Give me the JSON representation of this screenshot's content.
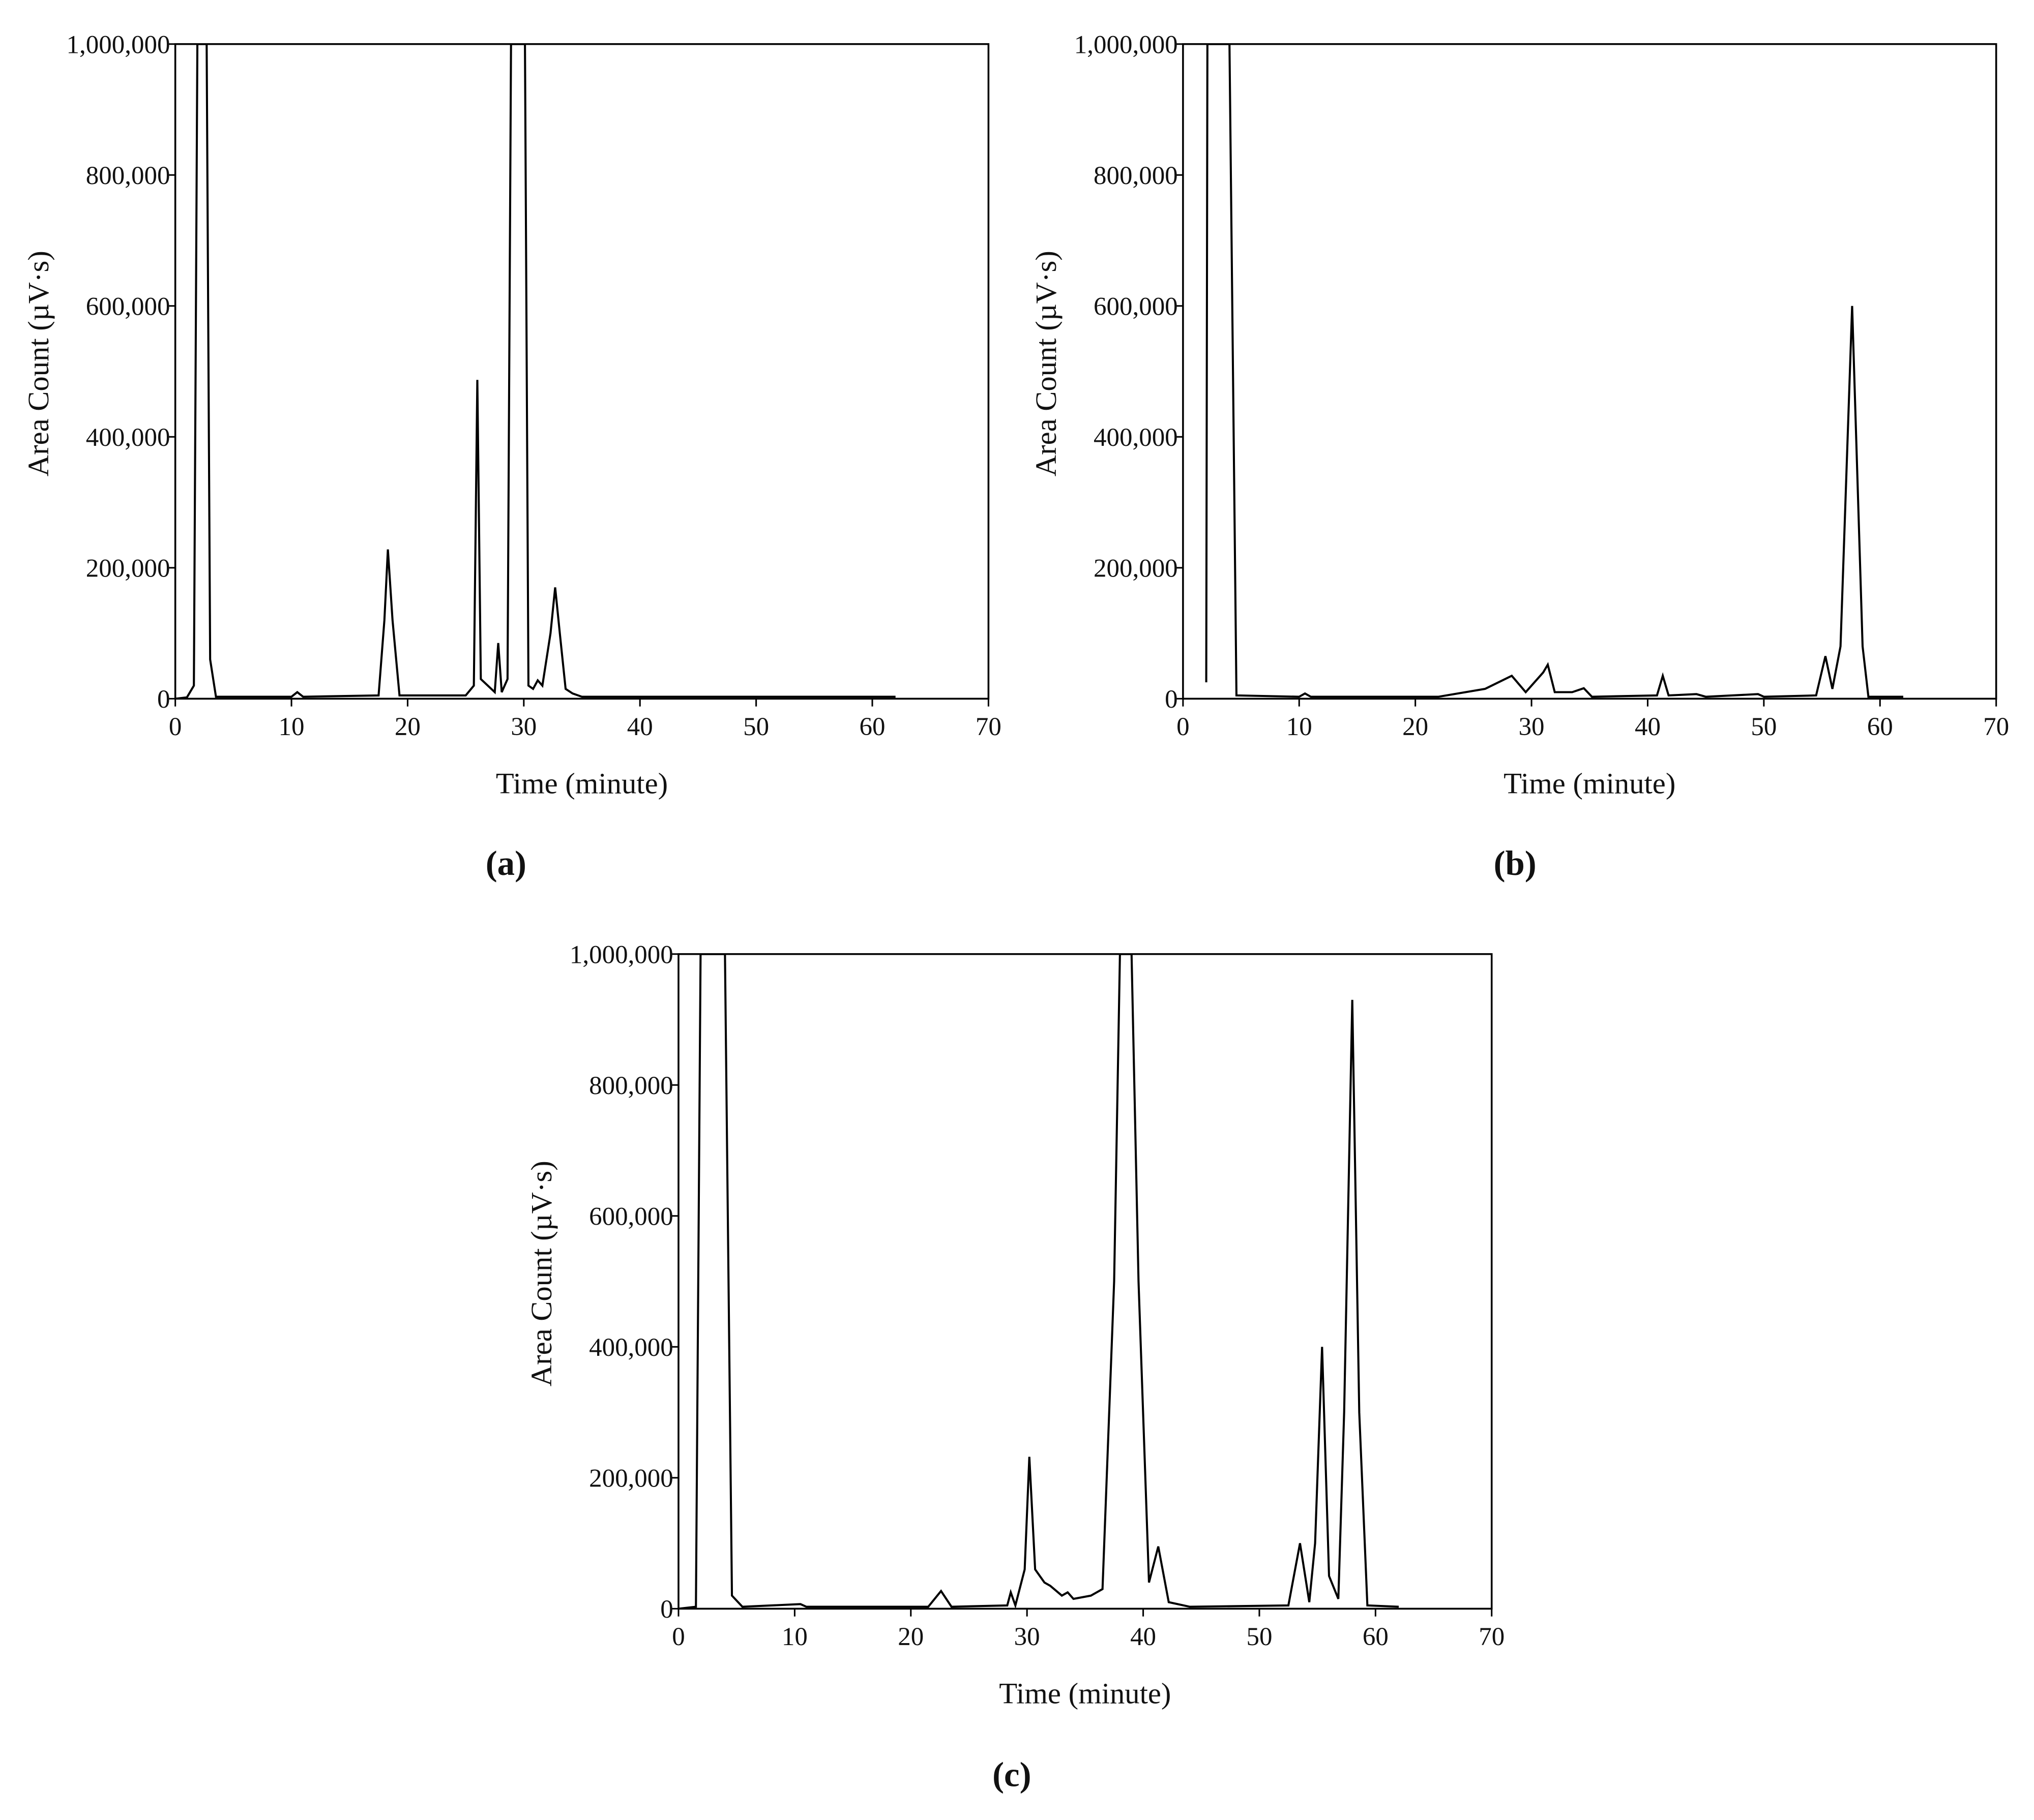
{
  "chart_data": [
    {
      "type": "line",
      "caption": "(a)",
      "xlabel": "Time (minute)",
      "ylabel": "Area Count (µV·s)",
      "xlim": [
        0,
        70
      ],
      "xticks": [
        0,
        10,
        20,
        30,
        40,
        50,
        60,
        70
      ],
      "ylim": [
        0,
        1000000
      ],
      "yticks": [
        0,
        {
          "value": 200000,
          "label": "200,000"
        },
        {
          "value": 400000,
          "label": "400,000"
        },
        {
          "value": 600000,
          "label": "600,000"
        },
        {
          "value": 800000,
          "label": "800,000"
        },
        {
          "value": 1000000,
          "label": "1,000,000"
        }
      ],
      "series": [
        {
          "color": "#000000",
          "x": [
            0,
            1,
            1.6,
            1.9,
            2.7,
            3.0,
            3.5,
            10,
            10.5,
            11,
            17.5,
            18.0,
            18.3,
            18.7,
            19.3,
            25,
            25.7,
            26.0,
            26.3,
            27.5,
            27.8,
            28.1,
            28.6,
            28.9,
            30.1,
            30.4,
            30.8,
            31.2,
            31.6,
            32.3,
            32.7,
            33.1,
            33.6,
            34.2,
            35,
            62
          ],
          "values": [
            0,
            2000,
            20000,
            1000000,
            1000000,
            60000,
            3000,
            3000,
            10000,
            3000,
            5000,
            120000,
            228000,
            120000,
            5000,
            5000,
            20000,
            487000,
            30000,
            10000,
            85000,
            10000,
            30000,
            1000000,
            1000000,
            20000,
            15000,
            28000,
            20000,
            100000,
            170000,
            100000,
            15000,
            8000,
            3000,
            3000
          ]
        }
      ]
    },
    {
      "type": "line",
      "caption": "(b)",
      "xlabel": "Time (minute)",
      "ylabel": "Area Count (µV·s)",
      "xlim": [
        0,
        70
      ],
      "xticks": [
        0,
        10,
        20,
        30,
        40,
        50,
        60,
        70
      ],
      "ylim": [
        0,
        1000000
      ],
      "yticks": [
        0,
        {
          "value": 200000,
          "label": "200,000"
        },
        {
          "value": 400000,
          "label": "400,000"
        },
        {
          "value": 600000,
          "label": "600,000"
        },
        {
          "value": 800000,
          "label": "800,000"
        },
        {
          "value": 1000000,
          "label": "1,000,000"
        }
      ],
      "series": [
        {
          "color": "#000000",
          "x": [
            2.0,
            2.1,
            4.0,
            4.6,
            10,
            10.5,
            11,
            22,
            26,
            28.3,
            29.5,
            31.0,
            31.4,
            32,
            33.5,
            34.5,
            35.2,
            40.8,
            41.3,
            41.8,
            44.2,
            45,
            49.5,
            50,
            54.5,
            55.3,
            55.9,
            56.6,
            57.6,
            58.5,
            59,
            62
          ],
          "values": [
            25000,
            1000000,
            1000000,
            5000,
            3000,
            8000,
            3000,
            3000,
            15000,
            35000,
            10000,
            40000,
            52000,
            10000,
            10000,
            16000,
            3000,
            5000,
            35000,
            5000,
            7000,
            3000,
            7000,
            3000,
            5000,
            65000,
            15000,
            80000,
            600000,
            80000,
            3000,
            3000
          ]
        }
      ]
    },
    {
      "type": "line",
      "caption": "(c)",
      "xlabel": "Time (minute)",
      "ylabel": "Area Count (µV·s)",
      "xlim": [
        0,
        70
      ],
      "xticks": [
        0,
        10,
        20,
        30,
        40,
        50,
        60,
        70
      ],
      "ylim": [
        0,
        1000000
      ],
      "yticks": [
        0,
        {
          "value": 200000,
          "label": "200,000"
        },
        {
          "value": 400000,
          "label": "400,000"
        },
        {
          "value": 600000,
          "label": "600,000"
        },
        {
          "value": 800000,
          "label": "800,000"
        },
        {
          "value": 1000000,
          "label": "1,000,000"
        }
      ],
      "series": [
        {
          "color": "#000000",
          "x": [
            0,
            1.5,
            1.9,
            4.0,
            4.6,
            5.5,
            10.5,
            11,
            21.5,
            22.6,
            23.5,
            28.3,
            28.6,
            29,
            29.8,
            30.2,
            30.7,
            31.5,
            32,
            33,
            33.5,
            34,
            35.5,
            36.5,
            37.5,
            38,
            39,
            39.6,
            40.5,
            41.3,
            42.2,
            44,
            52.5,
            53.5,
            54.3,
            54.8,
            55.4,
            56,
            56.8,
            57.3,
            58.0,
            58.6,
            59.3,
            62
          ],
          "values": [
            0,
            3000,
            1000000,
            1000000,
            20000,
            3000,
            7000,
            3000,
            3000,
            27000,
            3000,
            5000,
            25000,
            5000,
            60000,
            232000,
            60000,
            40000,
            35000,
            20000,
            25000,
            15000,
            20000,
            30000,
            500000,
            1000000,
            1000000,
            500000,
            40000,
            95000,
            10000,
            3000,
            5000,
            100000,
            10000,
            100000,
            400000,
            50000,
            15000,
            300000,
            930000,
            300000,
            5000,
            3000
          ]
        }
      ]
    }
  ]
}
